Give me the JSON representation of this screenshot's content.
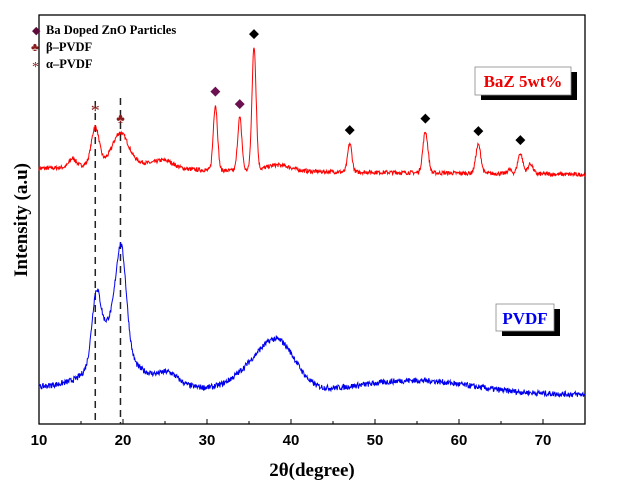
{
  "chart_data": {
    "type": "line",
    "title": "",
    "xlabel": "2θ(degree)",
    "ylabel": "Intensity (a.u)",
    "xlim": [
      10,
      75
    ],
    "xticks": [
      10,
      20,
      30,
      40,
      50,
      60,
      70
    ],
    "yticks_shown": false,
    "grid": false,
    "legend": {
      "placement": "top-left",
      "entries": [
        {
          "symbol": "diamond",
          "symbol_char": "◆",
          "color": "#5c0a3a",
          "label": "Ba Doped ZnO Particles"
        },
        {
          "symbol": "club",
          "symbol_char": "♣",
          "color": "#8b1a1a",
          "label": "β–PVDF"
        },
        {
          "symbol": "star",
          "symbol_char": "*",
          "color": "#8b1a1a",
          "label": "α–PVDF"
        }
      ]
    },
    "series": [
      {
        "name": "BaZ 5wt%",
        "label_box": "BaZ 5wt%",
        "color": "#ff0000",
        "baseline_level": 0.62,
        "peaks": [
          {
            "x": 14.0,
            "height": 0.02,
            "width": 0.4
          },
          {
            "x": 16.7,
            "height": 0.09,
            "width": 0.45
          },
          {
            "x": 19.7,
            "height": 0.07,
            "width": 0.9
          },
          {
            "x": 25.0,
            "height": 0.015,
            "width": 1.0
          },
          {
            "x": 31.0,
            "height": 0.16,
            "width": 0.25
          },
          {
            "x": 33.9,
            "height": 0.13,
            "width": 0.25
          },
          {
            "x": 35.6,
            "height": 0.3,
            "width": 0.25
          },
          {
            "x": 38.5,
            "height": 0.015,
            "width": 1.5
          },
          {
            "x": 47.0,
            "height": 0.07,
            "width": 0.25
          },
          {
            "x": 56.0,
            "height": 0.1,
            "width": 0.3
          },
          {
            "x": 62.3,
            "height": 0.07,
            "width": 0.3
          },
          {
            "x": 66.0,
            "height": 0.01,
            "width": 0.25
          },
          {
            "x": 67.3,
            "height": 0.05,
            "width": 0.3
          },
          {
            "x": 68.5,
            "height": 0.025,
            "width": 0.3
          }
        ]
      },
      {
        "name": "PVDF",
        "label_box": "PVDF",
        "color": "#0000ee",
        "baseline_level": 0.08,
        "peaks": [
          {
            "x": 16.8,
            "height": 0.14,
            "width": 0.5
          },
          {
            "x": 18.5,
            "height": 0.12,
            "width": 1.5
          },
          {
            "x": 19.8,
            "height": 0.22,
            "width": 0.6
          },
          {
            "x": 25.5,
            "height": 0.02,
            "width": 1.0
          },
          {
            "x": 36.0,
            "height": 0.06,
            "width": 2.5
          },
          {
            "x": 38.8,
            "height": 0.09,
            "width": 2.0
          }
        ]
      }
    ],
    "peak_markers": [
      {
        "x": 16.7,
        "type": "alpha-PVDF",
        "symbol_char": "*",
        "color": "#8b1a1a"
      },
      {
        "x": 19.7,
        "type": "beta-PVDF",
        "symbol_char": "♣",
        "color": "#8b1a1a"
      },
      {
        "x": 31.0,
        "type": "Ba Doped ZnO",
        "symbol_char": "◆",
        "color": "#6b1050"
      },
      {
        "x": 33.9,
        "type": "Ba Doped ZnO",
        "symbol_char": "◆",
        "color": "#6b1050"
      },
      {
        "x": 35.6,
        "type": "ZnO",
        "symbol_char": "◆",
        "color": "#000000"
      },
      {
        "x": 47.0,
        "type": "ZnO",
        "symbol_char": "◆",
        "color": "#000000"
      },
      {
        "x": 56.0,
        "type": "ZnO",
        "symbol_char": "◆",
        "color": "#000000"
      },
      {
        "x": 62.3,
        "type": "ZnO",
        "symbol_char": "◆",
        "color": "#000000"
      },
      {
        "x": 67.3,
        "type": "ZnO",
        "symbol_char": "◆",
        "color": "#000000"
      }
    ],
    "reference_lines": [
      {
        "x": 16.7,
        "style": "dashed",
        "label": "α–PVDF"
      },
      {
        "x": 19.7,
        "style": "dashed",
        "label": "β–PVDF"
      }
    ]
  }
}
